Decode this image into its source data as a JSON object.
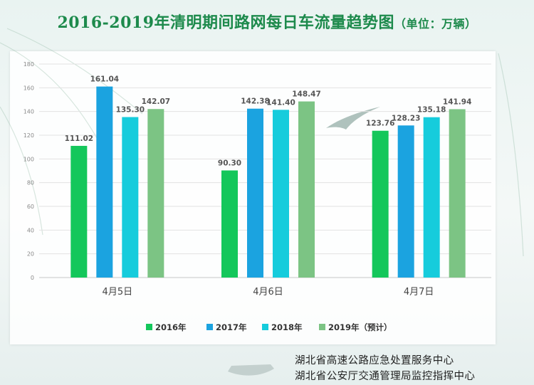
{
  "title": "2016-2019年清明期间路网每日车流量趋势图",
  "unit_label": "（单位：万辆）",
  "footer": {
    "line1": "湖北省高速公路应急处置服务中心",
    "line2": "湖北省公安厅交通管理局监控指挥中心"
  },
  "chart_data": {
    "type": "bar",
    "title": "2016-2019年清明期间路网每日车流量趋势图",
    "categories": [
      "4月5日",
      "4月6日",
      "4月7日"
    ],
    "series": [
      {
        "name": "2016年",
        "color": "#14c75b",
        "values": [
          111.02,
          90.3,
          123.76
        ]
      },
      {
        "name": "2017年",
        "color": "#1ba3e0",
        "values": [
          161.04,
          142.38,
          128.23
        ]
      },
      {
        "name": "2018年",
        "color": "#16ccdc",
        "values": [
          135.3,
          141.4,
          135.18
        ]
      },
      {
        "name": "2019年（预计）",
        "color": "#7cc484",
        "values": [
          142.07,
          148.47,
          141.94
        ]
      }
    ],
    "ylim": [
      0,
      180
    ],
    "yticks": [
      0,
      20,
      40,
      60,
      80,
      100,
      120,
      140,
      160,
      180
    ],
    "grid": true,
    "legend": "bottom"
  }
}
